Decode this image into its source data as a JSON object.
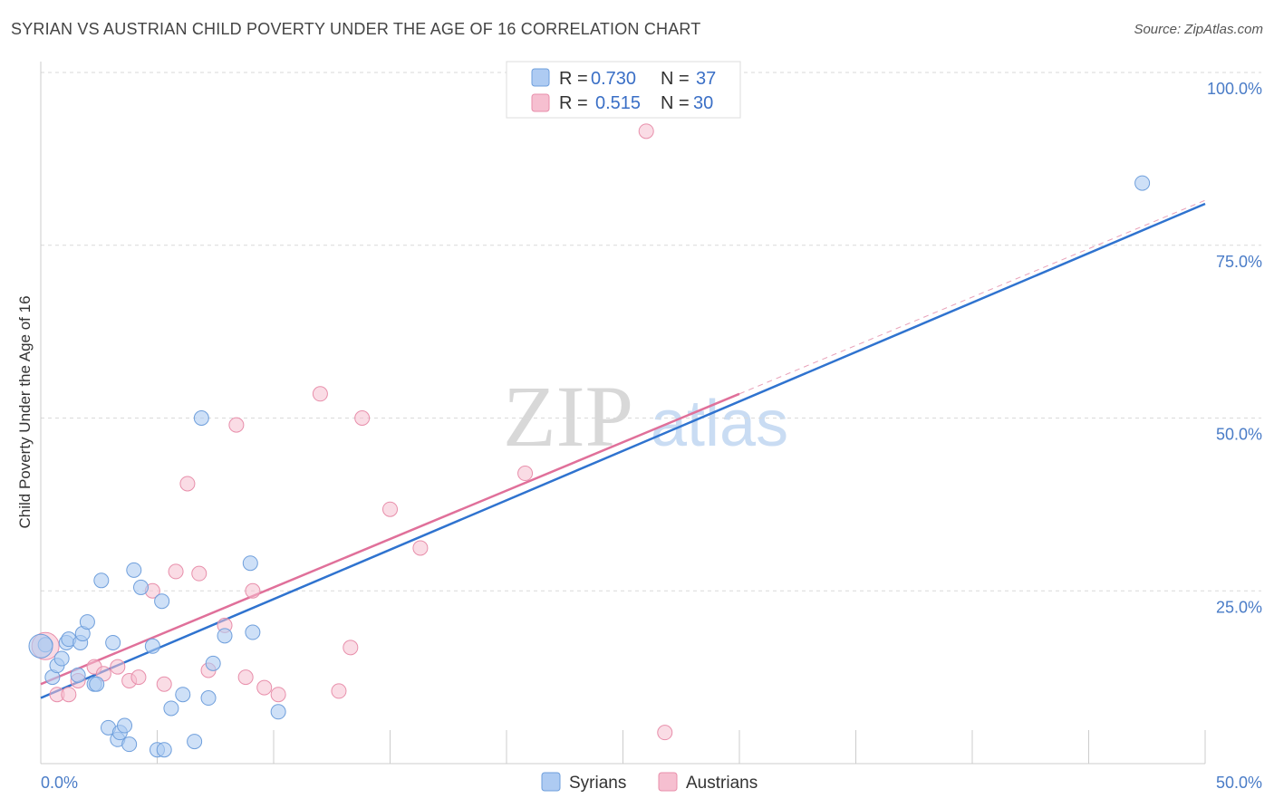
{
  "title": "SYRIAN VS AUSTRIAN CHILD POVERTY UNDER THE AGE OF 16 CORRELATION CHART",
  "source": "Source: ZipAtlas.com",
  "watermark": {
    "zip": "ZIP",
    "atlas": "atlas"
  },
  "legend": {
    "series": [
      {
        "r_label": "R =",
        "r_value": "0.730",
        "n_label": "N =",
        "n_value": "37"
      },
      {
        "r_label": "R =",
        "r_value": "0.515",
        "n_label": "N =",
        "n_value": "30"
      }
    ]
  },
  "colors": {
    "syrians_fill": "#aecbf2",
    "syrians_stroke": "#6f9fdc",
    "syrians_line": "#2f73cf",
    "austrians_fill": "#f6bfd0",
    "austrians_stroke": "#e88fab",
    "austrians_line": "#e0709a",
    "axis_label": "#4a7cc7",
    "grid": "#d9d9d9"
  },
  "chart_data": {
    "type": "scatter",
    "title": "SYRIAN VS AUSTRIAN CHILD POVERTY UNDER THE AGE OF 16 CORRELATION CHART",
    "xlabel": "",
    "ylabel": "Child Poverty Under the Age of 16",
    "xlim": [
      0,
      50
    ],
    "ylim": [
      0,
      100
    ],
    "x_tick_labels": [
      "0.0%",
      "50.0%"
    ],
    "y_tick_labels": [
      "100.0%",
      "75.0%",
      "50.0%",
      "25.0%"
    ],
    "y_ticks": [
      100,
      75,
      50,
      25
    ],
    "legend_bottom": [
      "Syrians",
      "Austrians"
    ],
    "series": [
      {
        "name": "Syrians",
        "r": 0.73,
        "n": 37,
        "trend": {
          "x": [
            0,
            50
          ],
          "y": [
            9.5,
            81.0
          ]
        },
        "points": [
          [
            0.2,
            17.2
          ],
          [
            0.5,
            12.5
          ],
          [
            0.7,
            14.2
          ],
          [
            0.9,
            15.2
          ],
          [
            1.1,
            17.5
          ],
          [
            1.2,
            18.0
          ],
          [
            1.6,
            12.8
          ],
          [
            1.7,
            17.5
          ],
          [
            1.8,
            18.8
          ],
          [
            2.0,
            20.5
          ],
          [
            2.3,
            11.5
          ],
          [
            2.4,
            11.5
          ],
          [
            2.6,
            26.5
          ],
          [
            2.9,
            5.2
          ],
          [
            3.1,
            17.5
          ],
          [
            3.3,
            3.5
          ],
          [
            3.4,
            4.5
          ],
          [
            3.6,
            5.5
          ],
          [
            3.8,
            2.8
          ],
          [
            4.0,
            28.0
          ],
          [
            4.3,
            25.5
          ],
          [
            4.8,
            17.0
          ],
          [
            5.0,
            2.0
          ],
          [
            5.2,
            23.5
          ],
          [
            5.3,
            2.0
          ],
          [
            5.6,
            8.0
          ],
          [
            6.1,
            10.0
          ],
          [
            6.6,
            3.2
          ],
          [
            6.9,
            50.0
          ],
          [
            7.2,
            9.5
          ],
          [
            7.4,
            14.5
          ],
          [
            7.9,
            18.5
          ],
          [
            9.0,
            29.0
          ],
          [
            9.1,
            19.0
          ],
          [
            10.2,
            7.5
          ],
          [
            47.3,
            84.0
          ],
          [
            0.0,
            17.0
          ]
        ]
      },
      {
        "name": "Austrians",
        "r": 0.515,
        "n": 30,
        "trend": {
          "x": [
            0,
            30
          ],
          "y": [
            11.5,
            53.5
          ]
        },
        "dashed_extension": {
          "x": [
            30,
            50
          ],
          "y": [
            53.5,
            81.5
          ]
        },
        "points": [
          [
            0.2,
            17.0
          ],
          [
            0.7,
            10.0
          ],
          [
            1.2,
            10.0
          ],
          [
            1.6,
            12.0
          ],
          [
            2.3,
            14.0
          ],
          [
            2.7,
            13.0
          ],
          [
            3.3,
            14.0
          ],
          [
            3.8,
            12.0
          ],
          [
            4.2,
            12.5
          ],
          [
            4.8,
            25.0
          ],
          [
            5.3,
            11.5
          ],
          [
            5.8,
            27.8
          ],
          [
            6.3,
            40.5
          ],
          [
            6.8,
            27.5
          ],
          [
            7.2,
            13.5
          ],
          [
            7.9,
            20.0
          ],
          [
            8.4,
            49.0
          ],
          [
            8.8,
            12.5
          ],
          [
            9.1,
            25.0
          ],
          [
            9.6,
            11.0
          ],
          [
            10.2,
            10.0
          ],
          [
            12.0,
            53.5
          ],
          [
            12.8,
            10.5
          ],
          [
            13.3,
            16.8
          ],
          [
            13.8,
            50.0
          ],
          [
            15.0,
            36.8
          ],
          [
            16.3,
            31.2
          ],
          [
            20.8,
            42.0
          ],
          [
            26.0,
            91.5
          ],
          [
            26.8,
            4.5
          ]
        ]
      }
    ]
  }
}
